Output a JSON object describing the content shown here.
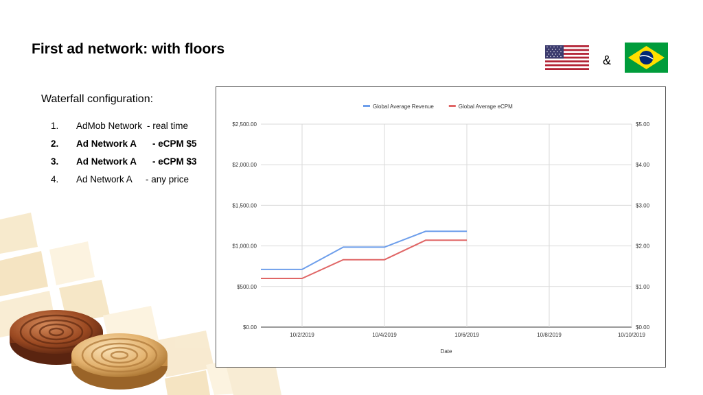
{
  "slide": {
    "title": "First ad network: with floors",
    "ampersand": "&"
  },
  "flags": {
    "left_icon": "usa-flag-icon",
    "right_icon": "brazil-flag-icon"
  },
  "waterfall": {
    "heading": "Waterfall configuration:",
    "items": [
      {
        "number": "1.",
        "name": "AdMob Network",
        "detail": "- real time",
        "bold": false
      },
      {
        "number": "2.",
        "name": "Ad Network A",
        "detail": "- eCPM $5",
        "bold": true
      },
      {
        "number": "3.",
        "name": "Ad Network A",
        "detail": "- eCPM $3",
        "bold": true
      },
      {
        "number": "4.",
        "name": "Ad Network A",
        "detail": "- any price",
        "bold": false
      }
    ]
  },
  "chart_data": {
    "type": "line",
    "title": "",
    "xlabel": "Date",
    "ylabel": "",
    "grid": true,
    "legend_position": "top",
    "x_ticks": [
      "10/2/2019",
      "10/4/2019",
      "10/6/2019",
      "10/8/2019",
      "10/10/2019"
    ],
    "xlim": [
      "2019-10-01",
      "2019-10-10"
    ],
    "y_left": {
      "ticks": [
        "$0.00",
        "$500.00",
        "$1,000.00",
        "$1,500.00",
        "$2,000.00",
        "$2,500.00"
      ],
      "ylim": [
        0,
        2500
      ]
    },
    "y_right": {
      "ticks": [
        "$0.00",
        "$1.00",
        "$2.00",
        "$3.00",
        "$4.00",
        "$5.00"
      ],
      "ylim": [
        0,
        5
      ]
    },
    "series": [
      {
        "name": "Global Average Revenue",
        "axis": "left",
        "color": "#6d9eeb",
        "x": [
          "2019-10-01",
          "2019-10-02",
          "2019-10-03",
          "2019-10-04",
          "2019-10-05",
          "2019-10-06"
        ],
        "values": [
          710,
          710,
          985,
          985,
          1180,
          1180
        ]
      },
      {
        "name": "Global Average eCPM",
        "axis": "right",
        "color": "#e06666",
        "x": [
          "2019-10-01",
          "2019-10-02",
          "2019-10-03",
          "2019-10-04",
          "2019-10-05",
          "2019-10-06"
        ],
        "values": [
          1.2,
          1.2,
          1.66,
          1.66,
          2.14,
          2.14
        ]
      }
    ]
  }
}
